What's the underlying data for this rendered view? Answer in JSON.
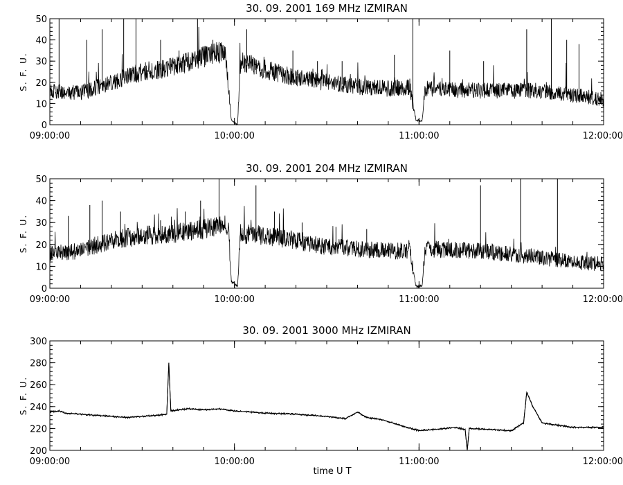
{
  "figure": {
    "xlabel": "time   U T"
  },
  "chart_data": [
    {
      "type": "line",
      "title": "30.  09.  2001    169  MHz    IZMIRAN",
      "ylabel": "S. F. U.",
      "xlim": [
        "09:00:00",
        "12:00:00"
      ],
      "ylim": [
        0,
        50
      ],
      "x_ticks": [
        "09:00:00",
        "10:00:00",
        "11:00:00",
        "12:00:00"
      ],
      "y_ticks": [
        0,
        10,
        20,
        30,
        40,
        50
      ],
      "grid": false,
      "series": [
        {
          "baseline": [
            [
              "09:00:00",
              16
            ],
            [
              "09:10:00",
              15
            ],
            [
              "09:20:00",
              20
            ],
            [
              "09:30:00",
              25
            ],
            [
              "09:40:00",
              27
            ],
            [
              "09:50:00",
              32
            ],
            [
              "09:57:00",
              35
            ],
            [
              "09:59:00",
              2
            ],
            [
              "10:01:00",
              0
            ],
            [
              "10:02:00",
              30
            ],
            [
              "10:10:00",
              26
            ],
            [
              "10:20:00",
              22
            ],
            [
              "10:30:00",
              20
            ],
            [
              "10:40:00",
              18
            ],
            [
              "10:50:00",
              17
            ],
            [
              "10:57:00",
              18
            ],
            [
              "10:59:00",
              2
            ],
            [
              "11:01:00",
              2
            ],
            [
              "11:02:00",
              17
            ],
            [
              "11:20:00",
              16
            ],
            [
              "11:40:00",
              16
            ],
            [
              "11:50:00",
              14
            ],
            [
              "12:00:00",
              12
            ]
          ],
          "spikes": [
            [
              "09:03:00",
              50
            ],
            [
              "09:12:00",
              40
            ],
            [
              "09:17:00",
              45
            ],
            [
              "09:24:00",
              50
            ],
            [
              "09:28:00",
              50
            ],
            [
              "09:36:00",
              40
            ],
            [
              "09:42:00",
              35
            ],
            [
              "09:48:00",
              50
            ],
            [
              "09:53:00",
              40
            ],
            [
              "10:04:00",
              45
            ],
            [
              "10:19:00",
              35
            ],
            [
              "10:27:00",
              30
            ],
            [
              "10:35:00",
              30
            ],
            [
              "10:52:00",
              33
            ],
            [
              "10:58:00",
              50
            ],
            [
              "11:10:00",
              35
            ],
            [
              "11:21:00",
              30
            ],
            [
              "11:35:00",
              45
            ],
            [
              "11:43:00",
              50
            ],
            [
              "11:48:00",
              40
            ],
            [
              "11:52:00",
              38
            ]
          ]
        }
      ]
    },
    {
      "type": "line",
      "title": "30.  09.  2001    204  MHz    IZMIRAN",
      "ylabel": "S. F. U.",
      "xlim": [
        "09:00:00",
        "12:00:00"
      ],
      "ylim": [
        0,
        50
      ],
      "x_ticks": [
        "09:00:00",
        "10:00:00",
        "11:00:00",
        "12:00:00"
      ],
      "y_ticks": [
        0,
        10,
        20,
        30,
        40,
        50
      ],
      "grid": false,
      "series": [
        {
          "baseline": [
            [
              "09:00:00",
              16
            ],
            [
              "09:10:00",
              17
            ],
            [
              "09:20:00",
              22
            ],
            [
              "09:30:00",
              24
            ],
            [
              "09:40:00",
              25
            ],
            [
              "09:50:00",
              27
            ],
            [
              "09:58:00",
              29
            ],
            [
              "09:59:00",
              3
            ],
            [
              "10:01:00",
              1
            ],
            [
              "10:02:00",
              25
            ],
            [
              "10:10:00",
              24
            ],
            [
              "10:20:00",
              22
            ],
            [
              "10:30:00",
              19
            ],
            [
              "10:40:00",
              18
            ],
            [
              "10:50:00",
              17
            ],
            [
              "10:57:00",
              17
            ],
            [
              "10:59:00",
              1
            ],
            [
              "11:01:00",
              1
            ],
            [
              "11:02:00",
              18
            ],
            [
              "11:20:00",
              17
            ],
            [
              "11:40:00",
              14
            ],
            [
              "11:50:00",
              12
            ],
            [
              "12:00:00",
              11
            ]
          ],
          "spikes": [
            [
              "09:06:00",
              33
            ],
            [
              "09:13:00",
              38
            ],
            [
              "09:17:00",
              40
            ],
            [
              "09:23:00",
              35
            ],
            [
              "09:36:00",
              31
            ],
            [
              "09:44:00",
              35
            ],
            [
              "09:49:00",
              40
            ],
            [
              "09:55:00",
              50
            ],
            [
              "10:07:00",
              47
            ],
            [
              "10:13:00",
              35
            ],
            [
              "10:22:00",
              30
            ],
            [
              "10:33:00",
              28
            ],
            [
              "10:43:00",
              27
            ],
            [
              "11:20:00",
              47
            ],
            [
              "11:33:00",
              50
            ],
            [
              "11:45:00",
              50
            ]
          ]
        }
      ]
    },
    {
      "type": "line",
      "title": "30.  09.  2001     3000  MHz    IZMIRAN",
      "ylabel": "S. F. U.",
      "xlabel": "time   U T",
      "xlim": [
        "09:00:00",
        "12:00:00"
      ],
      "ylim": [
        200,
        300
      ],
      "x_ticks": [
        "09:00:00",
        "10:00:00",
        "11:00:00",
        "12:00:00"
      ],
      "y_ticks": [
        200,
        220,
        240,
        260,
        280,
        300
      ],
      "grid": false,
      "series": [
        {
          "values": [
            [
              "09:00:00",
              235
            ],
            [
              "09:03:00",
              236
            ],
            [
              "09:05:00",
              234
            ],
            [
              "09:15:00",
              232
            ],
            [
              "09:25:00",
              230
            ],
            [
              "09:35:00",
              232
            ],
            [
              "09:38:00",
              233
            ],
            [
              "09:38:40",
              280
            ],
            [
              "09:39:20",
              236
            ],
            [
              "09:45:00",
              238
            ],
            [
              "09:50:00",
              237
            ],
            [
              "09:55:00",
              238
            ],
            [
              "10:00:00",
              236
            ],
            [
              "10:10:00",
              234
            ],
            [
              "10:20:00",
              233
            ],
            [
              "10:30:00",
              231
            ],
            [
              "10:36:00",
              229
            ],
            [
              "10:40:00",
              235
            ],
            [
              "10:43:00",
              230
            ],
            [
              "10:48:00",
              228
            ],
            [
              "10:55:00",
              222
            ],
            [
              "11:00:00",
              218
            ],
            [
              "11:05:00",
              219
            ],
            [
              "11:12:00",
              221
            ],
            [
              "11:15:00",
              219
            ],
            [
              "11:15:40",
              200
            ],
            [
              "11:16:20",
              220
            ],
            [
              "11:30:00",
              218
            ],
            [
              "11:34:00",
              225
            ],
            [
              "11:35:00",
              253
            ],
            [
              "11:37:00",
              240
            ],
            [
              "11:40:00",
              225
            ],
            [
              "11:50:00",
              221
            ],
            [
              "12:00:00",
              221
            ]
          ]
        }
      ]
    }
  ]
}
